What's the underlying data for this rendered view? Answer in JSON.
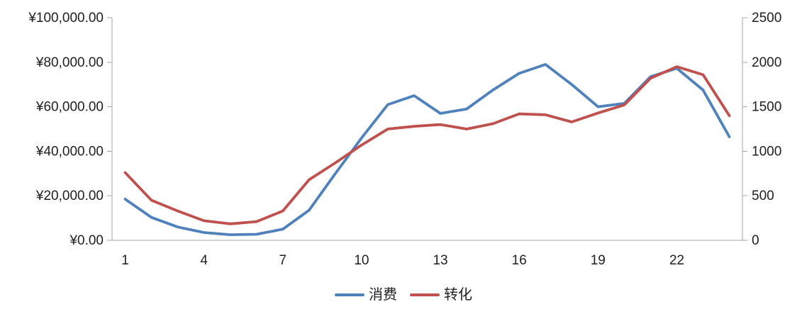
{
  "chart_data": {
    "type": "line",
    "title": "",
    "xlabel": "",
    "ylabel_left": "",
    "ylabel_right": "",
    "grid": false,
    "legend_position": "bottom",
    "x": [
      1,
      2,
      3,
      4,
      5,
      6,
      7,
      8,
      9,
      10,
      11,
      12,
      13,
      14,
      15,
      16,
      17,
      18,
      19,
      20,
      21,
      22,
      23,
      24
    ],
    "x_axis": {
      "tick_labels": [
        "1",
        "4",
        "7",
        "10",
        "13",
        "16",
        "19",
        "22"
      ],
      "tick_values": [
        1,
        4,
        7,
        10,
        13,
        16,
        19,
        22
      ]
    },
    "left_axis": {
      "min": 0,
      "max": 100000,
      "step": 20000,
      "tick_labels": [
        "¥0.00",
        "¥20,000.00",
        "¥40,000.00",
        "¥60,000.00",
        "¥80,000.00",
        "¥100,000.00"
      ]
    },
    "right_axis": {
      "min": 0,
      "max": 2500,
      "step": 500,
      "tick_labels": [
        "0",
        "500",
        "1000",
        "1500",
        "2000",
        "2500"
      ]
    },
    "series": [
      {
        "name": "消费",
        "axis": "left",
        "color": "#4F81BD",
        "values": [
          18500,
          10300,
          6000,
          3500,
          2500,
          2700,
          5000,
          13500,
          30000,
          46000,
          61000,
          65000,
          57000,
          59000,
          67500,
          75000,
          79000,
          70000,
          60000,
          61500,
          73500,
          77300,
          67500,
          46500
        ]
      },
      {
        "name": "转化",
        "axis": "right",
        "color": "#C0504D",
        "values": [
          760,
          450,
          330,
          220,
          185,
          210,
          330,
          680,
          870,
          1070,
          1250,
          1280,
          1300,
          1250,
          1310,
          1420,
          1410,
          1330,
          1430,
          1520,
          1820,
          1950,
          1860,
          1400
        ]
      }
    ],
    "legend": [
      {
        "label": "消费",
        "color": "#4F81BD"
      },
      {
        "label": "转化",
        "color": "#C0504D"
      }
    ]
  }
}
